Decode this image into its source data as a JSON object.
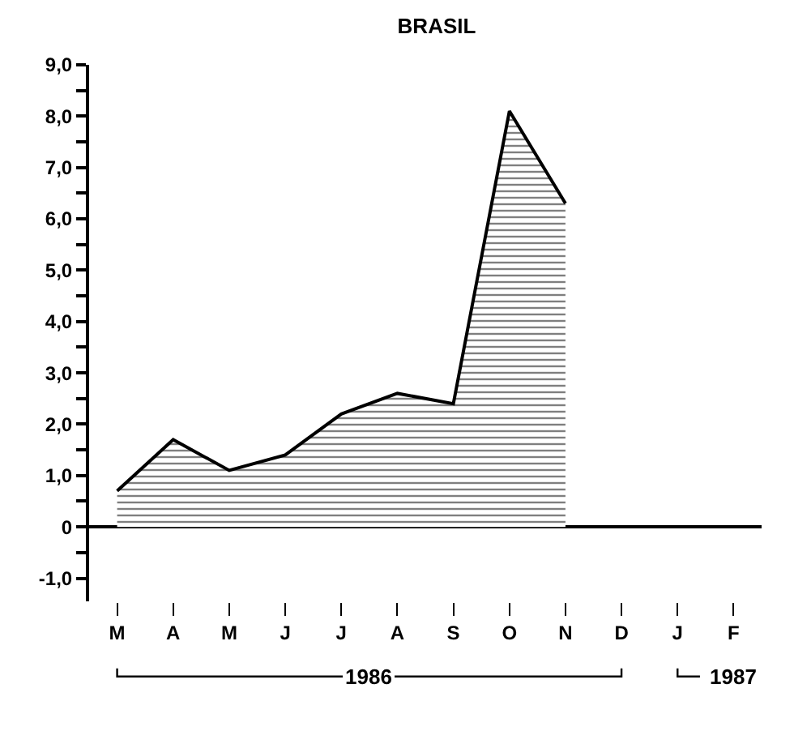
{
  "chart_data": {
    "type": "area",
    "title": "BRASIL",
    "categories": [
      "M",
      "A",
      "M",
      "J",
      "J",
      "A",
      "S",
      "O",
      "N",
      "D",
      "J",
      "F"
    ],
    "series": [
      {
        "color": "#000000",
        "values": [
          0.7,
          1.7,
          1.1,
          1.4,
          2.2,
          2.6,
          2.4,
          8.1,
          6.3,
          null,
          null,
          null
        ]
      }
    ],
    "ylim": [
      -1.45,
      9.0
    ],
    "yticks": [
      {
        "value": -1.0,
        "label": "-1,0"
      },
      {
        "value": -0.5,
        "label": null
      },
      0,
      {
        "value": 0.5,
        "label": null
      },
      {
        "value": 1.0,
        "label": "1,0"
      },
      {
        "value": 1.5,
        "label": null
      },
      {
        "value": 2.0,
        "label": "2,0"
      },
      {
        "value": 2.5,
        "label": null
      },
      {
        "value": 3.0,
        "label": "3,0"
      },
      {
        "value": 3.5,
        "label": null
      },
      {
        "value": 4.0,
        "label": "4,0"
      },
      {
        "value": 4.5,
        "label": null
      },
      {
        "value": 5.0,
        "label": "5,0"
      },
      {
        "value": 5.5,
        "label": null
      },
      {
        "value": 6.0,
        "label": "6,0"
      },
      {
        "value": 6.5,
        "label": null
      },
      {
        "value": 7.0,
        "label": "7,0"
      },
      {
        "value": 7.5,
        "label": null
      },
      {
        "value": 8.0,
        "label": "8,0"
      },
      {
        "value": 8.5,
        "label": null
      },
      {
        "value": 9.0,
        "label": "9,0"
      }
    ],
    "annotations": [
      "1986",
      "1987"
    ]
  }
}
